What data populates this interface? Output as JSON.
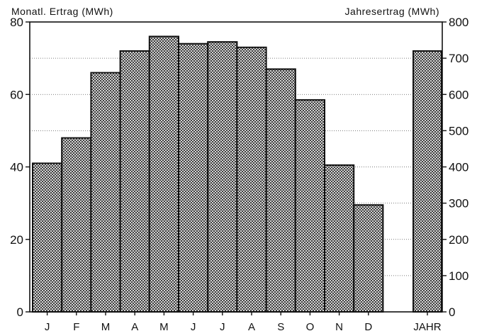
{
  "chart_data": {
    "type": "bar",
    "left_axis_title": "Monatl. Ertrag (MWh)",
    "right_axis_title": "Jahresertrag (MWh)",
    "categories": [
      "J",
      "F",
      "M",
      "A",
      "M",
      "J",
      "J",
      "A",
      "S",
      "O",
      "N",
      "D"
    ],
    "monthly_values": [
      41,
      48,
      66,
      72,
      76,
      74,
      74.5,
      73,
      67,
      58.5,
      40.5,
      29.5
    ],
    "annual_label": "JAHR",
    "annual_value": 720,
    "left_ylim": [
      0,
      80
    ],
    "left_ticks": [
      "0",
      "20",
      "40",
      "60",
      "80"
    ],
    "right_ylim": [
      0,
      800
    ],
    "right_ticks": [
      "0",
      "100",
      "200",
      "300",
      "400",
      "500",
      "600",
      "700",
      "800"
    ],
    "grid": "dotted horizontal at right-axis ticks",
    "bar_fill": "crosshatch",
    "colors": {
      "bar_stroke": "#111111",
      "hatch": "#222222",
      "background": "#ffffff"
    }
  }
}
